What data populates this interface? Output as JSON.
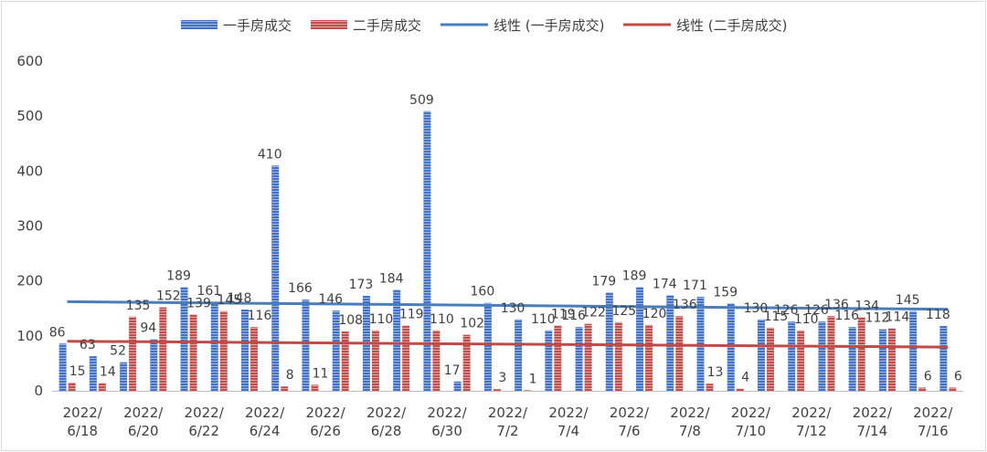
{
  "chart_data": {
    "type": "bar",
    "categories": [
      "2022/6/18",
      "2022/6/19",
      "2022/6/20",
      "2022/6/21",
      "2022/6/22",
      "2022/6/23",
      "2022/6/24",
      "2022/6/25",
      "2022/6/26",
      "2022/6/27",
      "2022/6/28",
      "2022/6/29",
      "2022/6/30",
      "2022/7/1",
      "2022/7/2",
      "2022/7/3",
      "2022/7/4",
      "2022/7/5",
      "2022/7/6",
      "2022/7/7",
      "2022/7/8",
      "2022/7/9",
      "2022/7/10",
      "2022/7/11",
      "2022/7/12",
      "2022/7/13",
      "2022/7/14",
      "2022/7/15",
      "2022/7/16",
      "2022/7/17"
    ],
    "tick_labels": [
      {
        "line1": "2022/",
        "line2": "6/18"
      },
      {
        "line1": "2022/",
        "line2": "6/20"
      },
      {
        "line1": "2022/",
        "line2": "6/22"
      },
      {
        "line1": "2022/",
        "line2": "6/24"
      },
      {
        "line1": "2022/",
        "line2": "6/26"
      },
      {
        "line1": "2022/",
        "line2": "6/28"
      },
      {
        "line1": "2022/",
        "line2": "6/30"
      },
      {
        "line1": "2022/",
        "line2": "7/2"
      },
      {
        "line1": "2022/",
        "line2": "7/4"
      },
      {
        "line1": "2022/",
        "line2": "7/6"
      },
      {
        "line1": "2022/",
        "line2": "7/8"
      },
      {
        "line1": "2022/",
        "line2": "7/10"
      },
      {
        "line1": "2022/",
        "line2": "7/12"
      },
      {
        "line1": "2022/",
        "line2": "7/14"
      },
      {
        "line1": "2022/",
        "line2": "7/16"
      }
    ],
    "series": [
      {
        "name": "一手房成交",
        "color": "#4472c4",
        "values": [
          86,
          63,
          52,
          94,
          189,
          161,
          148,
          410,
          166,
          146,
          173,
          184,
          509,
          17,
          160,
          130,
          110,
          116,
          179,
          189,
          174,
          171,
          159,
          130,
          126,
          126,
          116,
          112,
          145,
          118
        ]
      },
      {
        "name": "二手房成交",
        "color": "#c0504d",
        "values": [
          15,
          14,
          135,
          152,
          139,
          145,
          116,
          8,
          11,
          108,
          110,
          119,
          110,
          102,
          3,
          1,
          119,
          122,
          125,
          120,
          136,
          13,
          4,
          115,
          110,
          136,
          134,
          114,
          6,
          6
        ]
      }
    ],
    "trendlines": [
      {
        "name": "线性 (一手房成交)",
        "color": "#4a7ebb",
        "series": 0
      },
      {
        "name": "线性 (二手房成交)",
        "color": "#be4b48",
        "series": 1
      }
    ],
    "ylim": [
      0,
      600
    ],
    "yticks": [
      0,
      100,
      200,
      300,
      400,
      500,
      600
    ],
    "grid": false,
    "legend": "top",
    "title": "",
    "xlabel": "",
    "ylabel": ""
  }
}
